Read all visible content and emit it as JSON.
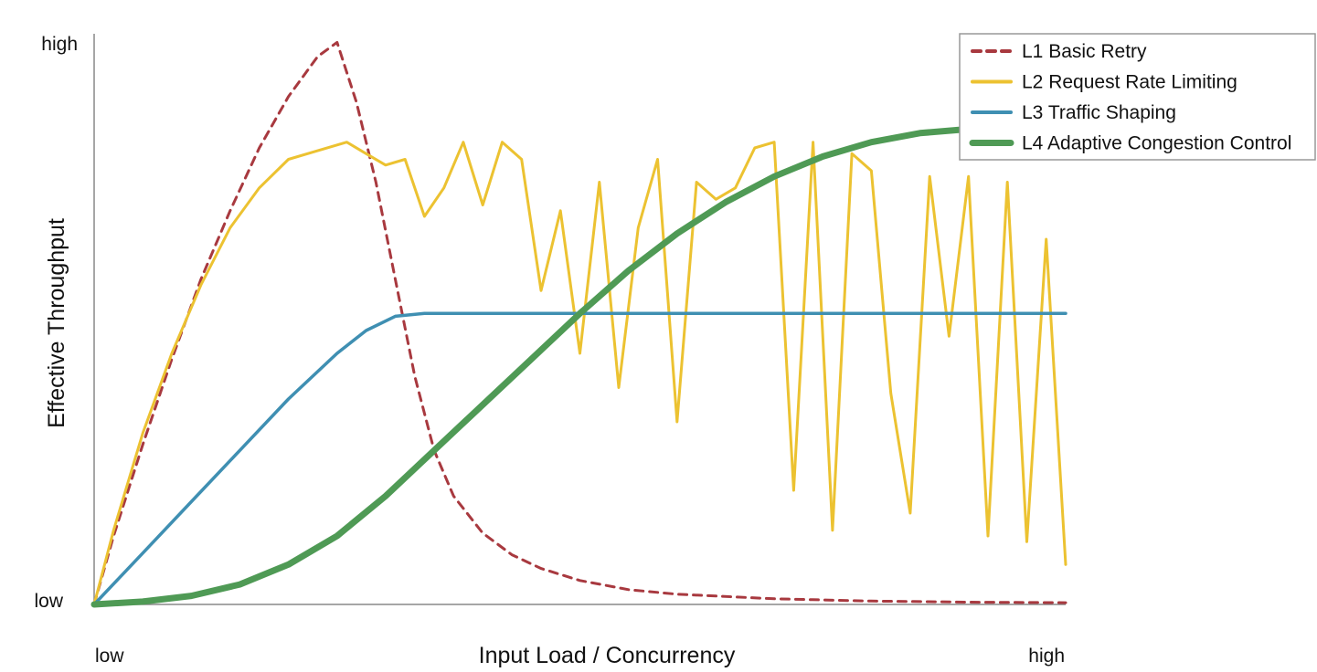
{
  "chart_data": {
    "type": "line",
    "title": "",
    "xlabel": "Input Load / Concurrency",
    "ylabel": "Effective Throughput",
    "xlim": [
      0,
      100
    ],
    "ylim": [
      0,
      100
    ],
    "x_tick_labels": {
      "low": "low",
      "high": "high"
    },
    "y_tick_labels": {
      "low": "low",
      "high": "high"
    },
    "grid": false,
    "legend_position": "top-right",
    "series": [
      {
        "name": "L1 Basic Retry",
        "color": "#a8393f",
        "style": "dashed",
        "x": [
          0,
          2,
          5,
          8,
          11,
          14,
          17,
          20,
          23,
          25,
          27,
          29,
          31,
          33,
          35,
          37,
          40,
          43,
          46,
          50,
          55,
          60,
          70,
          80,
          90,
          100
        ],
        "y": [
          0,
          12,
          28,
          43,
          57,
          69,
          80,
          89,
          96,
          98.5,
          88,
          74,
          57,
          40,
          27,
          19,
          12.5,
          8.7,
          6.3,
          4.2,
          2.6,
          1.8,
          1.0,
          0.6,
          0.4,
          0.3
        ]
      },
      {
        "name": "L2 Request Rate Limiting",
        "color": "#ecc231",
        "style": "solid",
        "x": [
          0,
          2,
          5,
          8,
          11,
          14,
          17,
          20,
          23,
          26,
          28,
          30,
          32,
          34,
          36,
          38,
          40,
          42,
          44,
          46,
          48,
          50,
          52,
          54,
          56,
          58,
          60,
          62,
          64,
          66,
          68,
          70,
          72,
          74,
          76,
          78,
          80,
          82,
          84,
          86,
          88,
          90,
          92,
          94,
          96,
          98,
          100
        ],
        "y": [
          0,
          13,
          30,
          44,
          56,
          66,
          73,
          78,
          79.5,
          81,
          79,
          77,
          78,
          68,
          73,
          81,
          70,
          81,
          78,
          55,
          69,
          44,
          74,
          38,
          66,
          78,
          32,
          74,
          71,
          73,
          80,
          81,
          20,
          81,
          13,
          79,
          76,
          37,
          16,
          75,
          47,
          75,
          12,
          74,
          11,
          64,
          7
        ]
      },
      {
        "name": "L3 Traffic Shaping",
        "color": "#3f8fb2",
        "style": "solid",
        "x": [
          0,
          5,
          10,
          15,
          20,
          25,
          28,
          31,
          34,
          37,
          40,
          45,
          50,
          60,
          70,
          80,
          90,
          100
        ],
        "y": [
          0,
          9,
          18,
          27,
          36,
          44,
          48,
          50.5,
          51,
          51,
          51,
          51,
          51,
          51,
          51,
          51,
          51,
          51
        ],
        "line_width": "medium"
      },
      {
        "name": "L4 Adaptive Congestion Control",
        "color": "#4f9a55",
        "style": "solid",
        "line_width": "thick",
        "x": [
          0,
          5,
          10,
          15,
          20,
          25,
          30,
          35,
          40,
          45,
          50,
          55,
          60,
          65,
          70,
          75,
          80,
          85,
          90,
          95,
          100
        ],
        "y": [
          0,
          0.5,
          1.5,
          3.5,
          7,
          12,
          19,
          27,
          35,
          43,
          51,
          58.5,
          65,
          70.5,
          75,
          78.5,
          81,
          82.6,
          83.3,
          83.6,
          83.7
        ]
      }
    ]
  }
}
